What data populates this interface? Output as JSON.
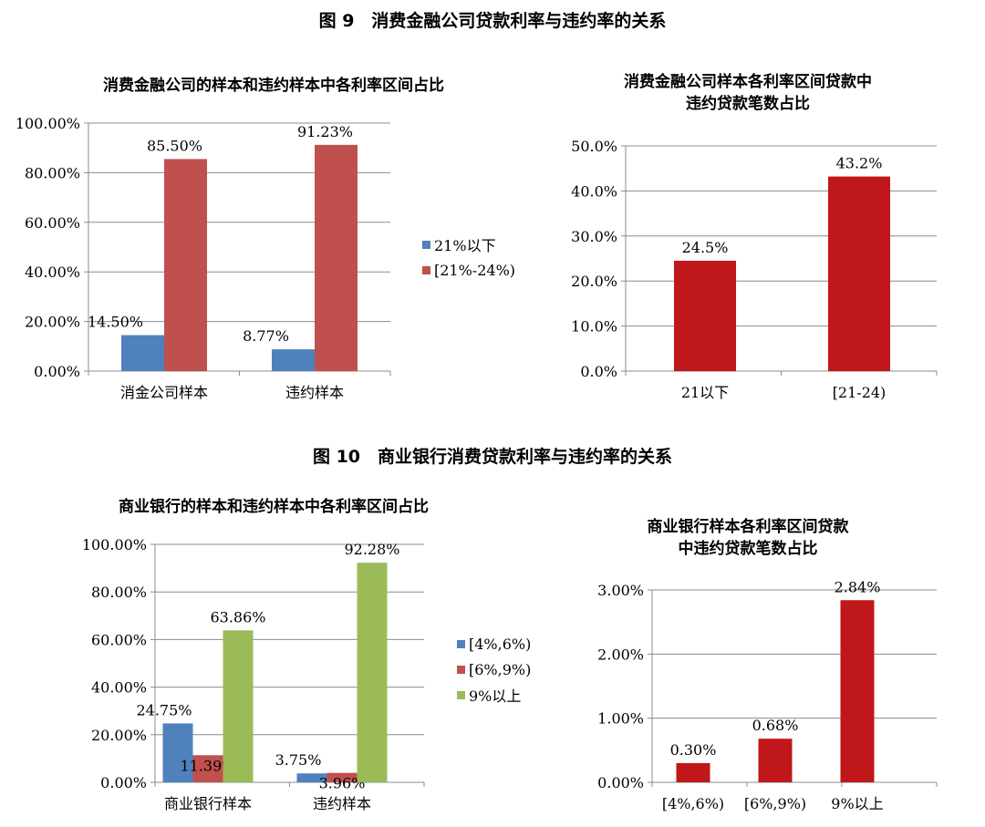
{
  "figure9_title": "图 9　消费金融公司贷款利率与违约率的关系",
  "figure10_title": "图 10　商业银行消费贷款利率与违约率的关系",
  "chart_data": [
    {
      "type": "bar",
      "title": "消费金融公司的样本和违约样本中各利率区间占比",
      "categories": [
        "消金公司样本",
        "违约样本"
      ],
      "series": [
        {
          "name": "21%以下",
          "values": [
            14.5,
            8.77
          ],
          "labels": [
            "14.50%",
            "8.77%"
          ],
          "color": "#4f81bd"
        },
        {
          "name": "[21%-24%)",
          "values": [
            85.5,
            91.23
          ],
          "labels": [
            "85.50%",
            "91.23%"
          ],
          "color": "#c0504d"
        }
      ],
      "yticks": [
        "0.00%",
        "20.00%",
        "40.00%",
        "60.00%",
        "80.00%",
        "100.00%"
      ],
      "ylim": [
        0,
        100
      ],
      "grid": true,
      "legend": "right"
    },
    {
      "type": "bar",
      "title": "消费金融公司样本各利率区间贷款中\n违约贷款笔数占比",
      "categories": [
        "21以下",
        "[21-24)"
      ],
      "series": [
        {
          "values": [
            24.5,
            43.2
          ],
          "labels": [
            "24.5%",
            "43.2%"
          ],
          "color": "#c0171a"
        }
      ],
      "yticks": [
        "0.0%",
        "10.0%",
        "20.0%",
        "30.0%",
        "40.0%",
        "50.0%"
      ],
      "ylim": [
        0,
        50
      ],
      "grid": true
    },
    {
      "type": "bar",
      "title": "商业银行的样本和违约样本中各利率区间占比",
      "categories": [
        "商业银行样本",
        "违约样本"
      ],
      "series": [
        {
          "name": "[4%,6%)",
          "values": [
            24.75,
            3.75
          ],
          "labels": [
            "24.75%",
            "3.75%"
          ],
          "color": "#4f81bd"
        },
        {
          "name": "[6%,9%)",
          "values": [
            11.39,
            3.96
          ],
          "labels": [
            "11.39%",
            "3.96%"
          ],
          "color": "#c0504d"
        },
        {
          "name": "9%以上",
          "values": [
            63.86,
            92.28
          ],
          "labels": [
            "63.86%",
            "92.28%"
          ],
          "color": "#9bbb59"
        }
      ],
      "yticks": [
        "0.00%",
        "20.00%",
        "40.00%",
        "60.00%",
        "80.00%",
        "100.00%"
      ],
      "ylim": [
        0,
        100
      ],
      "grid": true,
      "legend": "right"
    },
    {
      "type": "bar",
      "title": "商业银行样本各利率区间贷款\n中违约贷款笔数占比",
      "categories": [
        "[4%,6%)",
        "[6%,9%)",
        "9%以上"
      ],
      "series": [
        {
          "values": [
            0.3,
            0.68,
            2.84
          ],
          "labels": [
            "0.30%",
            "0.68%",
            "2.84%"
          ],
          "color": "#c0171a"
        }
      ],
      "yticks": [
        "0.00%",
        "1.00%",
        "2.00%",
        "3.00%"
      ],
      "ylim": [
        0,
        3
      ],
      "grid": true
    }
  ]
}
